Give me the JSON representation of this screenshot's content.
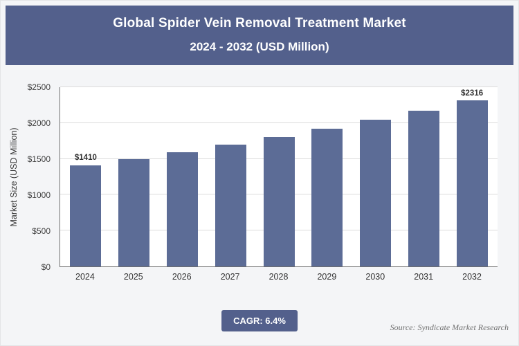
{
  "colors": {
    "accent": "#53608C",
    "bar": "#5C6C96",
    "grid": "#DBDBDB",
    "axis": "#6E6E6E",
    "plot_bg": "#FFFFFF",
    "page_bg": "#F4F5F7"
  },
  "header": {
    "title_line1": "Global Spider Vein Removal Treatment Market",
    "title_line2": "2024 - 2032 (USD Million)"
  },
  "chart_data": {
    "type": "bar",
    "title": "Global Spider Vein Removal Treatment Market 2024 - 2032 (USD Million)",
    "categories": [
      "2024",
      "2025",
      "2026",
      "2027",
      "2028",
      "2029",
      "2030",
      "2031",
      "2032"
    ],
    "values": [
      1410,
      1500,
      1592,
      1697,
      1805,
      1921,
      2044,
      2175,
      2316
    ],
    "bar_labels": [
      "$1410",
      "",
      "",
      "",
      "",
      "",
      "",
      "",
      "$2316"
    ],
    "ylabel": "Market Size (USD Million)",
    "xlabel": "",
    "ylim": [
      0,
      2500
    ],
    "ytick_step": 500,
    "yticks": [
      "$0",
      "$500",
      "$1000",
      "$1500",
      "$2000",
      "$2500"
    ],
    "grid": true,
    "legend": false
  },
  "footer": {
    "cagr_label": "CAGR: 6.4%",
    "source": "Source: Syndicate Market Research"
  }
}
